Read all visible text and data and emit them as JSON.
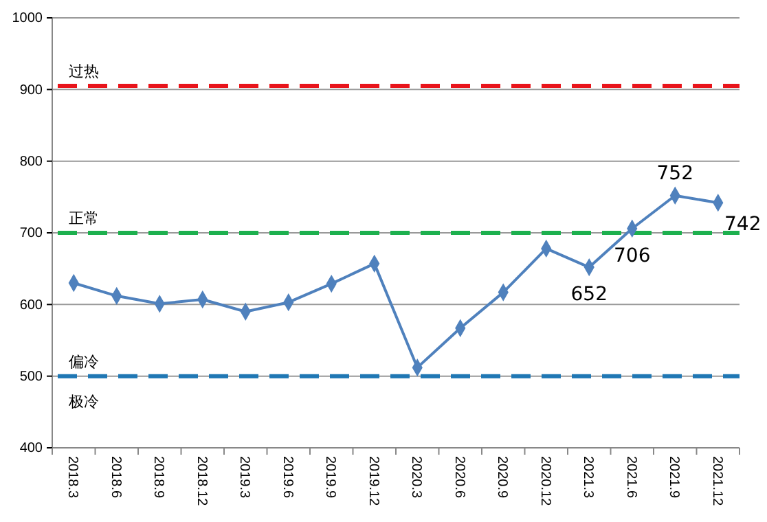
{
  "chart_data": {
    "type": "line",
    "categories": [
      "2018.3",
      "2018.6",
      "2018.9",
      "2018.12",
      "2019.3",
      "2019.6",
      "2019.9",
      "2019.12",
      "2020.3",
      "2020.6",
      "2020.9",
      "2020.12",
      "2021.3",
      "2021.6",
      "2021.9",
      "2021.12"
    ],
    "series": [
      {
        "color": "#4f81bd",
        "values": [
          630,
          612,
          601,
          607,
          590,
          603,
          629,
          657,
          512,
          567,
          617,
          678,
          652,
          706,
          752,
          742
        ],
        "value_labels": [
          null,
          null,
          null,
          null,
          null,
          null,
          null,
          null,
          null,
          null,
          null,
          null,
          "652",
          "706",
          "752",
          "742"
        ]
      }
    ],
    "ylim": [
      400,
      1000
    ],
    "yticks": [
      400,
      500,
      600,
      700,
      800,
      900,
      1000
    ],
    "grid": "y",
    "marker": "diamond",
    "line_style": "solid",
    "ref_lines": [
      {
        "axis": "y",
        "value": 905,
        "label": "过热",
        "color": "#e8141b",
        "line_style": "dashed"
      },
      {
        "axis": "y",
        "value": 700,
        "label": "正常",
        "color": "#1db04e",
        "line_style": "dashed"
      },
      {
        "axis": "y",
        "value": 500,
        "label": "偏冷",
        "color": "#1f77b4",
        "line_style": "dashed"
      }
    ],
    "annotations": [
      "极冷"
    ]
  }
}
